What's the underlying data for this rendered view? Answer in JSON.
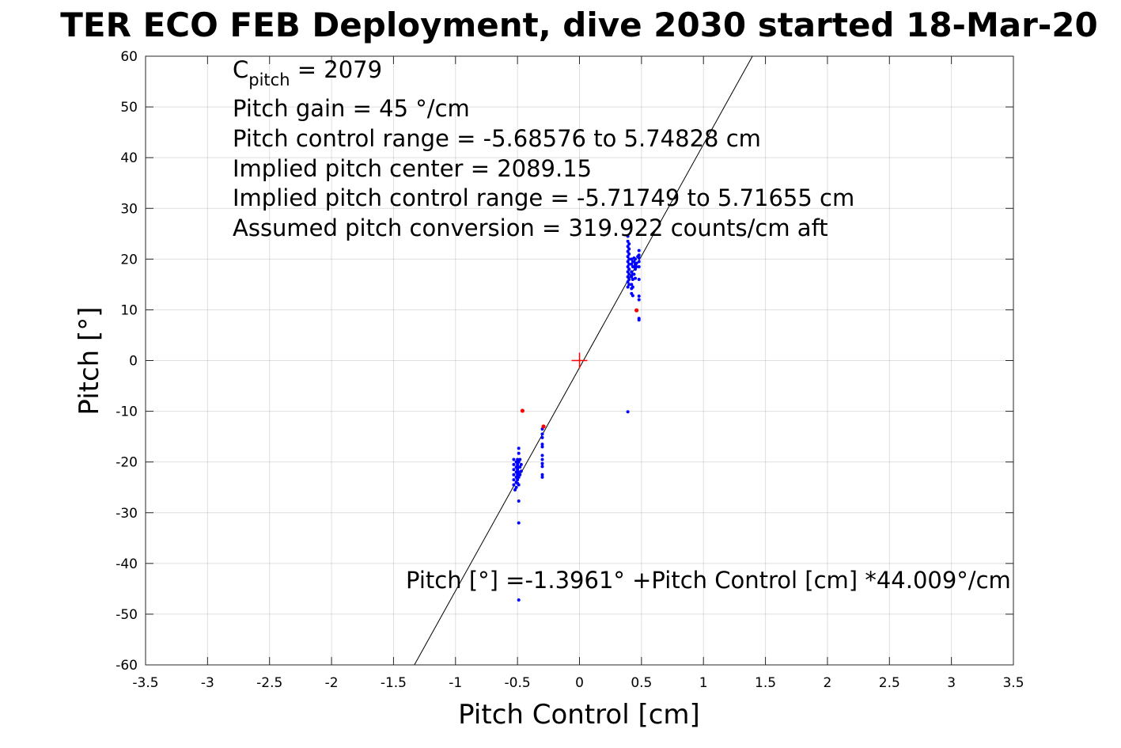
{
  "chart_data": {
    "type": "scatter",
    "title": "TER ECO FEB Deployment, dive 2030 started 18-Mar-20",
    "xlabel": "Pitch Control [cm]",
    "ylabel": "Pitch [°]",
    "xlim": [
      -3.5,
      3.5
    ],
    "ylim": [
      -60,
      60
    ],
    "x_ticks": [
      -3.5,
      -3,
      -2.5,
      -2,
      -1.5,
      -1,
      -0.5,
      0,
      0.5,
      1,
      1.5,
      2,
      2.5,
      3,
      3.5
    ],
    "x_tick_labels": [
      "-3.5",
      "-3",
      "-2.5",
      "-2",
      "-1.5",
      "-1",
      "-0.5",
      "0",
      "0.5",
      "1",
      "1.5",
      "2",
      "2.5",
      "3",
      "3.5"
    ],
    "y_ticks": [
      -60,
      -50,
      -40,
      -30,
      -20,
      -10,
      0,
      10,
      20,
      30,
      40,
      50,
      60
    ],
    "y_tick_labels": [
      "-60",
      "-50",
      "-40",
      "-30",
      "-20",
      "-10",
      "0",
      "10",
      "20",
      "30",
      "40",
      "50",
      "60"
    ],
    "grid": true,
    "annotations": {
      "c_pitch_main": "C",
      "c_pitch_sub": "pitch",
      "c_pitch_value": " = 2079",
      "lines": [
        "Pitch gain = 45 °/cm",
        "Pitch control range = -5.68576 to 5.74828 cm",
        "Implied pitch center = 2089.15",
        "Implied pitch control range = -5.71749 to 5.71655 cm",
        "Assumed pitch conversion = 319.922 counts/cm aft"
      ],
      "fit_equation": "Pitch [°] =-1.3961° +Pitch Control [cm] *44.009°/cm"
    },
    "fit_line": {
      "intercept": -1.3961,
      "slope": 44.009,
      "color": "#000000"
    },
    "center_marker": {
      "x": 0,
      "y": 0,
      "color": "#ff0000"
    },
    "series": [
      {
        "color": "#0000ff",
        "points": [
          [
            -0.53,
            -19.5
          ],
          [
            -0.53,
            -20.5
          ],
          [
            -0.53,
            -21.5
          ],
          [
            -0.53,
            -22.5
          ],
          [
            -0.53,
            -23.5
          ],
          [
            -0.53,
            -24.5
          ],
          [
            -0.52,
            -25.5
          ],
          [
            -0.51,
            -20
          ],
          [
            -0.51,
            -21
          ],
          [
            -0.51,
            -22
          ],
          [
            -0.51,
            -23
          ],
          [
            -0.51,
            -24
          ],
          [
            -0.51,
            -25
          ],
          [
            -0.5,
            -19.5
          ],
          [
            -0.5,
            -20.5
          ],
          [
            -0.5,
            -21.5
          ],
          [
            -0.5,
            -22.5
          ],
          [
            -0.5,
            -23.5
          ],
          [
            -0.5,
            -24.2
          ],
          [
            -0.49,
            -17.3
          ],
          [
            -0.49,
            -18.3
          ],
          [
            -0.49,
            -20
          ],
          [
            -0.49,
            -21
          ],
          [
            -0.49,
            -22
          ],
          [
            -0.49,
            -23
          ],
          [
            -0.49,
            -24.5
          ],
          [
            -0.49,
            -27.7
          ],
          [
            -0.49,
            -32
          ],
          [
            -0.49,
            -47.2
          ],
          [
            -0.48,
            -19.5
          ],
          [
            -0.48,
            -21
          ],
          [
            -0.48,
            -22.5
          ],
          [
            -0.47,
            -20.5
          ],
          [
            -0.47,
            -21.8
          ],
          [
            -0.3,
            -13.5
          ],
          [
            -0.3,
            -14.5
          ],
          [
            -0.3,
            -15.2
          ],
          [
            -0.3,
            -16.5
          ],
          [
            -0.3,
            -17
          ],
          [
            -0.3,
            -18.7
          ],
          [
            -0.3,
            -19.5
          ],
          [
            -0.3,
            -20.3
          ],
          [
            -0.3,
            -20.9
          ],
          [
            -0.3,
            -22.5
          ],
          [
            -0.3,
            -23
          ],
          [
            0.39,
            -10.1
          ],
          [
            0.39,
            14.5
          ],
          [
            0.39,
            15.5
          ],
          [
            0.39,
            16.5
          ],
          [
            0.39,
            17.5
          ],
          [
            0.39,
            18.5
          ],
          [
            0.39,
            19.5
          ],
          [
            0.39,
            20.5
          ],
          [
            0.39,
            21.5
          ],
          [
            0.39,
            22.5
          ],
          [
            0.39,
            23.5
          ],
          [
            0.39,
            24.5
          ],
          [
            0.4,
            15
          ],
          [
            0.4,
            16
          ],
          [
            0.4,
            17
          ],
          [
            0.4,
            18
          ],
          [
            0.4,
            19
          ],
          [
            0.4,
            20
          ],
          [
            0.4,
            21
          ],
          [
            0.4,
            22
          ],
          [
            0.4,
            23
          ],
          [
            0.42,
            13.2
          ],
          [
            0.42,
            14.2
          ],
          [
            0.42,
            15
          ],
          [
            0.42,
            16.5
          ],
          [
            0.42,
            17.5
          ],
          [
            0.42,
            19
          ],
          [
            0.42,
            20
          ],
          [
            0.43,
            12.8
          ],
          [
            0.43,
            14.5
          ],
          [
            0.43,
            16
          ],
          [
            0.43,
            17
          ],
          [
            0.43,
            18.5
          ],
          [
            0.43,
            19.5
          ],
          [
            0.44,
            17
          ],
          [
            0.44,
            18.5
          ],
          [
            0.44,
            19.5
          ],
          [
            0.44,
            20.2
          ],
          [
            0.45,
            16.2
          ],
          [
            0.45,
            18
          ],
          [
            0.45,
            19
          ],
          [
            0.45,
            20
          ],
          [
            0.46,
            18.5
          ],
          [
            0.46,
            19.2
          ],
          [
            0.47,
            20.5
          ],
          [
            0.48,
            8
          ],
          [
            0.48,
            8.3
          ],
          [
            0.48,
            12
          ],
          [
            0.48,
            12.7
          ],
          [
            0.48,
            16
          ],
          [
            0.48,
            18.5
          ],
          [
            0.48,
            19.5
          ],
          [
            0.48,
            20.2
          ],
          [
            0.48,
            20.8
          ],
          [
            0.48,
            21.7
          ]
        ]
      },
      {
        "color": "#ff0000",
        "points": [
          [
            -0.46,
            -9.9
          ],
          [
            0.46,
            9.9
          ],
          [
            -0.29,
            -13
          ]
        ]
      }
    ]
  }
}
